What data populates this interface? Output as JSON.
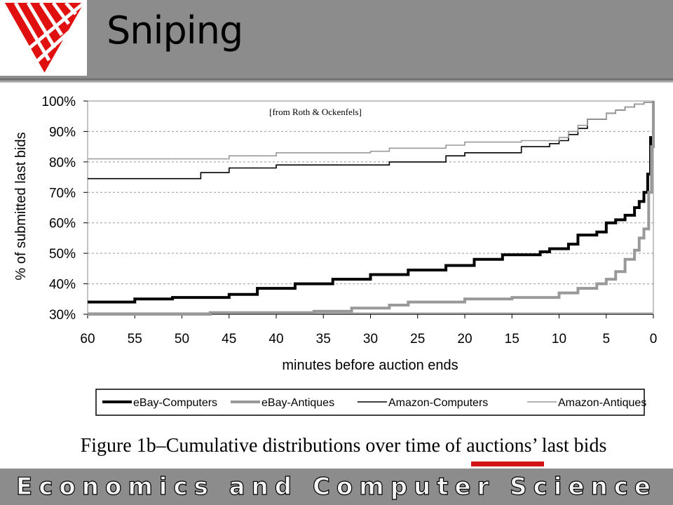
{
  "slide": {
    "title": "Sniping",
    "caption_prefix": "Figure 1b–Cumulative distributions over time of ",
    "caption_highlight": "auctions’",
    "caption_suffix": " last bids",
    "footer": "Economics and Computer Science",
    "highlight_color": "#d21414",
    "band_color": "#8c8c8c"
  },
  "chart_data": {
    "type": "line",
    "annotation": "[from Roth & Ockenfels]",
    "xlabel": "minutes before auction ends",
    "ylabel": "% of submitted last bids",
    "xlim": [
      60,
      0
    ],
    "ylim": [
      30,
      100
    ],
    "x_ticks": [
      60,
      55,
      50,
      45,
      40,
      35,
      30,
      25,
      20,
      15,
      10,
      5,
      0
    ],
    "y_ticks": [
      30,
      40,
      50,
      60,
      70,
      80,
      90,
      100
    ],
    "y_tick_labels": [
      "30%",
      "40%",
      "50%",
      "60%",
      "70%",
      "80%",
      "90%",
      "100%"
    ],
    "grid": "horizontal dashed",
    "legend_position": "bottom",
    "series": [
      {
        "name": "eBay-Computers",
        "color": "#000000",
        "width": 4,
        "x": [
          60,
          55,
          51,
          45,
          42,
          38,
          34,
          30,
          26,
          22,
          19,
          16,
          12,
          11,
          9,
          8,
          6,
          5,
          4,
          3,
          2,
          1.5,
          1,
          0.6,
          0.3,
          0
        ],
        "y": [
          34,
          35,
          35.5,
          36.5,
          38.5,
          40,
          41.5,
          43,
          44.5,
          46,
          48,
          49.5,
          50.5,
          51.5,
          53,
          56,
          57,
          60,
          61,
          62.5,
          65,
          67,
          70,
          76,
          88,
          100
        ]
      },
      {
        "name": "eBay-Antiques",
        "color": "#999999",
        "width": 4,
        "x": [
          60,
          47,
          36,
          32,
          28,
          26,
          20,
          15,
          10,
          8,
          6,
          5,
          4,
          3,
          2,
          1.5,
          1,
          0.5,
          0.2,
          0
        ],
        "y": [
          30,
          30.5,
          31,
          32,
          33,
          34,
          35,
          35.5,
          37,
          38.5,
          40,
          41.5,
          44,
          48,
          51,
          55,
          58,
          70,
          85,
          100
        ]
      },
      {
        "name": "Amazon-Computers",
        "color": "#000000",
        "width": 1.6,
        "x": [
          60,
          51,
          48,
          45,
          40,
          30,
          28,
          22,
          20,
          14,
          11,
          10,
          9,
          8,
          7,
          5,
          4,
          3,
          2,
          1,
          0.5,
          0
        ],
        "y": [
          74.5,
          74.5,
          76.5,
          78,
          79,
          79,
          80,
          82,
          83,
          85,
          86,
          87,
          89,
          91,
          94,
          96,
          97,
          98,
          99,
          99.5,
          99.5,
          100
        ]
      },
      {
        "name": "Amazon-Antiques",
        "color": "#999999",
        "width": 1.6,
        "x": [
          60,
          48,
          45,
          40,
          30,
          28,
          22,
          20,
          14,
          10,
          9,
          8,
          7,
          5,
          4,
          3,
          2,
          1,
          0
        ],
        "y": [
          81,
          81,
          82,
          83,
          83.5,
          84.5,
          85.5,
          86.5,
          87,
          88,
          90,
          92,
          94,
          96,
          97,
          98,
          99,
          99.5,
          100
        ]
      }
    ]
  }
}
